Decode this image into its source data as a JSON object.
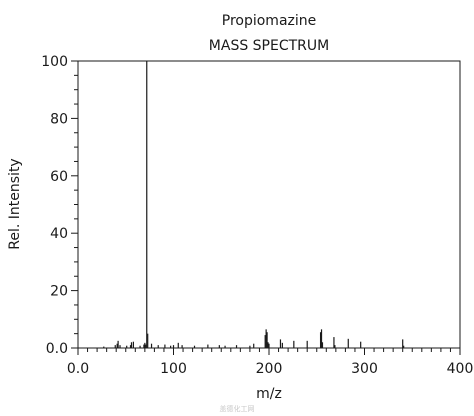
{
  "chart_data": {
    "type": "bar",
    "title": "Propiomazine",
    "subtitle": "MASS SPECTRUM",
    "xlabel": "m/z",
    "ylabel": "Rel. Intensity",
    "xlim": [
      0,
      400
    ],
    "ylim": [
      0,
      100
    ],
    "x_ticks": [
      "0.0",
      "100",
      "200",
      "300",
      "400"
    ],
    "y_ticks": [
      "0.0",
      "20",
      "40",
      "60",
      "80",
      "100"
    ],
    "grid": false,
    "legend": "none",
    "series": [
      {
        "x": [
          27,
          39,
          41,
          42,
          44,
          51,
          55,
          56,
          58,
          65,
          69,
          70,
          71,
          72,
          73,
          77,
          84,
          91,
          97,
          100,
          105,
          109,
          122,
          136,
          148,
          154,
          166,
          180,
          184,
          196,
          197,
          198,
          199,
          200,
          212,
          214,
          226,
          240,
          254,
          255,
          256,
          268,
          269,
          283,
          296,
          340,
          341
        ],
        "values": [
          0.5,
          1,
          1.5,
          2.5,
          1,
          0.8,
          1,
          2,
          2.2,
          0.8,
          1.2,
          1.8,
          1.2,
          100,
          5,
          1.5,
          1,
          1.2,
          0.8,
          1,
          1.8,
          1,
          0.8,
          1.2,
          1,
          0.8,
          1,
          0.8,
          1.5,
          4.5,
          6.5,
          5.5,
          2,
          1.5,
          3,
          1.8,
          2.5,
          2.5,
          5.5,
          6.5,
          2,
          3.8,
          1,
          3.2,
          2.2,
          3,
          0.8
        ]
      }
    ],
    "colors": {
      "line": "#1a1a1a",
      "axis": "#1a1a1a"
    },
    "watermark": "盖德化工网"
  }
}
